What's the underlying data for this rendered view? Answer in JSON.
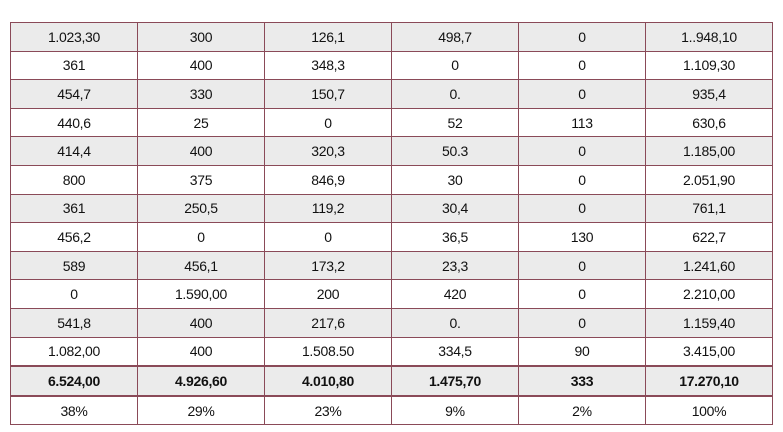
{
  "table": {
    "rows": [
      [
        "1.023,30",
        "300",
        "126,1",
        "498,7",
        "0",
        "1..948,10"
      ],
      [
        "361",
        "400",
        "348,3",
        "0",
        "0",
        "1.109,30"
      ],
      [
        "454,7",
        "330",
        "150,7",
        "0.",
        "0",
        "935,4"
      ],
      [
        "440,6",
        "25",
        "0",
        "52",
        "113",
        "630,6"
      ],
      [
        "414,4",
        "400",
        "320,3",
        "50.3",
        "0",
        "1.185,00"
      ],
      [
        "800",
        "375",
        "846,9",
        "30",
        "0",
        "2.051,90"
      ],
      [
        "361",
        "250,5",
        "119,2",
        "30,4",
        "0",
        "761,1"
      ],
      [
        "456,2",
        "0",
        "0",
        "36,5",
        "130",
        "622,7"
      ],
      [
        "589",
        "456,1",
        "173,2",
        "23,3",
        "0",
        "1.241,60"
      ],
      [
        "0",
        "1.590,00",
        "200",
        "420",
        "0",
        "2.210,00"
      ],
      [
        "541,8",
        "400",
        "217,6",
        "0.",
        "0",
        "1.159,40"
      ],
      [
        "1.082,00",
        "400",
        "1.508.50",
        "334,5",
        "90",
        "3.415,00"
      ]
    ],
    "totals": [
      "6.524,00",
      "4.926,60",
      "4.010,80",
      "1.475,70",
      "333",
      "17.270,10"
    ],
    "shares": [
      "38%",
      "29%",
      "23%",
      "9%",
      "2%",
      "100%"
    ]
  }
}
